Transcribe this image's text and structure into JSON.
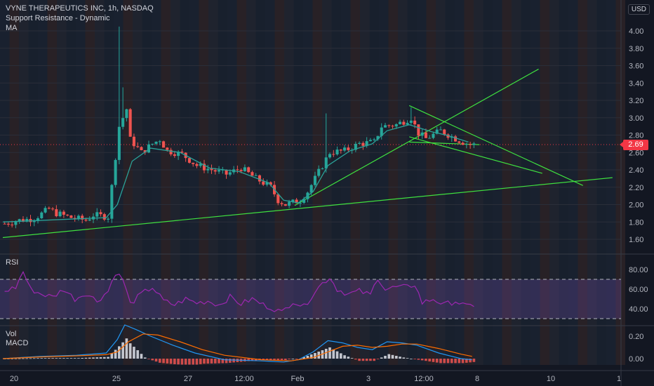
{
  "header": {
    "title": "VYNE THERAPEUTICS INC, 1h, NASDAQ",
    "indicator1": "Support Resistance - Dynamic",
    "indicator2": "MA"
  },
  "currency": "USD",
  "last_price": "2.69",
  "panes": {
    "rsi_label": "RSI",
    "vol_label": "Vol",
    "macd_label": "MACD"
  },
  "colors": {
    "background": "#131722",
    "up": "#26a69a",
    "down": "#ef5350",
    "trendline": "#3fe03f",
    "ma": "#2aa198",
    "rsi": "#9c27b0",
    "macd": "#2196f3",
    "signal": "#ff6d00",
    "price_line": "#f23645"
  },
  "chart_data": [
    {
      "type": "candlestick",
      "title": "VYNE THERAPEUTICS INC, 1h, NASDAQ",
      "ylim": [
        1.5,
        4.1
      ],
      "y_ticks": [
        "4.00",
        "3.80",
        "3.60",
        "3.40",
        "3.20",
        "3.00",
        "2.80",
        "2.60",
        "2.40",
        "2.20",
        "2.00",
        "1.80",
        "1.60"
      ],
      "x_ticks": [
        "20",
        "25",
        "27",
        "12:00",
        "Feb",
        "3",
        "12:00",
        "8",
        "10",
        "1"
      ],
      "last_price": 2.69,
      "close_path": [
        [
          0,
          1.78
        ],
        [
          4,
          1.82
        ],
        [
          8,
          1.84
        ],
        [
          12,
          1.95
        ],
        [
          14,
          1.9
        ],
        [
          18,
          1.85
        ],
        [
          22,
          1.82
        ],
        [
          24,
          1.88
        ],
        [
          28,
          1.86
        ],
        [
          31,
          2.9
        ],
        [
          33,
          3.1
        ],
        [
          34,
          2.75
        ],
        [
          37,
          2.6
        ],
        [
          40,
          2.7
        ],
        [
          42,
          2.75
        ],
        [
          44,
          2.62
        ],
        [
          48,
          2.58
        ],
        [
          52,
          2.45
        ],
        [
          56,
          2.4
        ],
        [
          60,
          2.35
        ],
        [
          64,
          2.42
        ],
        [
          68,
          2.3
        ],
        [
          72,
          2.2
        ],
        [
          74,
          2.05
        ],
        [
          76,
          2.0
        ],
        [
          80,
          2.05
        ],
        [
          82,
          2.15
        ],
        [
          84,
          2.3
        ],
        [
          86,
          2.45
        ],
        [
          88,
          2.6
        ],
        [
          92,
          2.62
        ],
        [
          96,
          2.7
        ],
        [
          100,
          2.72
        ],
        [
          102,
          2.9
        ],
        [
          106,
          2.92
        ],
        [
          110,
          3.0
        ],
        [
          112,
          2.82
        ],
        [
          114,
          2.76
        ],
        [
          118,
          2.85
        ],
        [
          122,
          2.76
        ],
        [
          124,
          2.72
        ],
        [
          126,
          2.69
        ]
      ],
      "spikes": [
        {
          "bar": 31,
          "high": 4.05
        },
        {
          "bar": 32,
          "high": 3.35
        },
        {
          "bar": 87,
          "high": 3.05
        },
        {
          "bar": 110,
          "high": 3.12
        }
      ],
      "ma": [
        [
          0,
          1.8
        ],
        [
          28,
          1.85
        ],
        [
          31,
          2.0
        ],
        [
          35,
          2.5
        ],
        [
          40,
          2.65
        ],
        [
          48,
          2.6
        ],
        [
          56,
          2.42
        ],
        [
          64,
          2.38
        ],
        [
          72,
          2.25
        ],
        [
          76,
          2.05
        ],
        [
          80,
          2.02
        ],
        [
          84,
          2.15
        ],
        [
          88,
          2.45
        ],
        [
          94,
          2.62
        ],
        [
          100,
          2.7
        ],
        [
          104,
          2.85
        ],
        [
          110,
          2.92
        ],
        [
          116,
          2.84
        ],
        [
          120,
          2.8
        ],
        [
          126,
          2.72
        ]
      ],
      "trendlines": [
        {
          "from": [
            0,
            1.62
          ],
          "to": [
            165,
            2.31
          ]
        },
        {
          "from": [
            79,
            1.99
          ],
          "to": [
            145,
            3.56
          ]
        },
        {
          "from": [
            110,
            3.14
          ],
          "to": [
            157,
            2.22
          ]
        },
        {
          "from": [
            110,
            2.78
          ],
          "to": [
            146,
            2.36
          ]
        },
        {
          "from": [
            110,
            2.72
          ],
          "to": [
            129,
            2.69
          ]
        }
      ]
    },
    {
      "type": "line",
      "name": "RSI",
      "ylim": [
        25,
        85
      ],
      "y_ticks": [
        "80.00",
        "60.00",
        "40.00"
      ],
      "levels": [
        70,
        30
      ],
      "values": [
        [
          0,
          58
        ],
        [
          3,
          62
        ],
        [
          5,
          78
        ],
        [
          7,
          60
        ],
        [
          10,
          55
        ],
        [
          13,
          52
        ],
        [
          16,
          60
        ],
        [
          19,
          50
        ],
        [
          22,
          56
        ],
        [
          25,
          48
        ],
        [
          28,
          58
        ],
        [
          30,
          77
        ],
        [
          32,
          70
        ],
        [
          34,
          45
        ],
        [
          37,
          55
        ],
        [
          40,
          62
        ],
        [
          43,
          48
        ],
        [
          46,
          44
        ],
        [
          49,
          50
        ],
        [
          52,
          46
        ],
        [
          55,
          48
        ],
        [
          58,
          44
        ],
        [
          61,
          52
        ],
        [
          64,
          45
        ],
        [
          67,
          50
        ],
        [
          70,
          44
        ],
        [
          73,
          40
        ],
        [
          75,
          36
        ],
        [
          78,
          48
        ],
        [
          81,
          42
        ],
        [
          84,
          58
        ],
        [
          86,
          66
        ],
        [
          88,
          72
        ],
        [
          90,
          60
        ],
        [
          93,
          55
        ],
        [
          96,
          58
        ],
        [
          99,
          54
        ],
        [
          101,
          72
        ],
        [
          103,
          60
        ],
        [
          106,
          62
        ],
        [
          109,
          62
        ],
        [
          111,
          65
        ],
        [
          113,
          46
        ],
        [
          116,
          50
        ],
        [
          119,
          44
        ],
        [
          122,
          48
        ],
        [
          125,
          42
        ],
        [
          127,
          44
        ]
      ]
    },
    {
      "type": "bar",
      "name": "MACD",
      "ylim": [
        -0.06,
        0.32
      ],
      "y_ticks": [
        "0.20",
        "0.00"
      ],
      "macd": [
        [
          0,
          0.0
        ],
        [
          10,
          0.02
        ],
        [
          20,
          0.03
        ],
        [
          28,
          0.05
        ],
        [
          31,
          0.17
        ],
        [
          33,
          0.3
        ],
        [
          36,
          0.26
        ],
        [
          40,
          0.2
        ],
        [
          46,
          0.12
        ],
        [
          52,
          0.05
        ],
        [
          60,
          -0.01
        ],
        [
          70,
          -0.02
        ],
        [
          76,
          -0.03
        ],
        [
          80,
          -0.01
        ],
        [
          84,
          0.06
        ],
        [
          88,
          0.16
        ],
        [
          92,
          0.14
        ],
        [
          96,
          0.1
        ],
        [
          100,
          0.08
        ],
        [
          104,
          0.15
        ],
        [
          108,
          0.14
        ],
        [
          112,
          0.12
        ],
        [
          118,
          0.05
        ],
        [
          124,
          0.0
        ],
        [
          127,
          -0.01
        ]
      ],
      "signal": [
        [
          0,
          0.0
        ],
        [
          10,
          0.015
        ],
        [
          20,
          0.025
        ],
        [
          28,
          0.035
        ],
        [
          31,
          0.06
        ],
        [
          34,
          0.15
        ],
        [
          38,
          0.22
        ],
        [
          42,
          0.21
        ],
        [
          48,
          0.15
        ],
        [
          54,
          0.08
        ],
        [
          60,
          0.03
        ],
        [
          70,
          -0.01
        ],
        [
          78,
          -0.02
        ],
        [
          84,
          0.01
        ],
        [
          88,
          0.06
        ],
        [
          92,
          0.11
        ],
        [
          96,
          0.12
        ],
        [
          100,
          0.1
        ],
        [
          104,
          0.11
        ],
        [
          108,
          0.13
        ],
        [
          112,
          0.13
        ],
        [
          118,
          0.09
        ],
        [
          124,
          0.04
        ],
        [
          127,
          0.02
        ]
      ]
    }
  ]
}
